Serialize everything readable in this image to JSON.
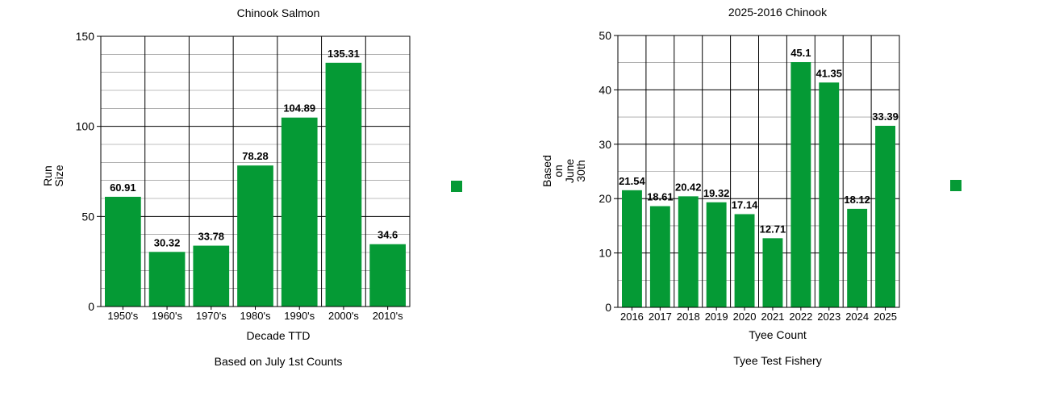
{
  "colors": {
    "bar": "#059a35",
    "left_value_label": "#8b0000",
    "right_value_label": "#000000",
    "major_grid": "#000000",
    "minor_grid": "#808080"
  },
  "chart_data": [
    {
      "type": "bar",
      "title": "Chinook Salmon",
      "subtitle": "Based on July 1st Counts",
      "xlabel": "Decade TTD",
      "ylabel": [
        "Run",
        "Size"
      ],
      "categories": [
        "1950's",
        "1960's",
        "1970's",
        "1980's",
        "1990's",
        "2000's",
        "2010's"
      ],
      "values": [
        60.91,
        30.32,
        33.78,
        78.28,
        104.89,
        135.31,
        34.6
      ],
      "value_labels": [
        "60.91",
        "30.32",
        "33.78",
        "78.28",
        "104.89",
        "135.31",
        "34.6"
      ],
      "ylim": [
        0,
        150
      ],
      "yticks": [
        0,
        50,
        100,
        150
      ],
      "minor_grid_step": 10,
      "legend": "right",
      "grid": true
    },
    {
      "type": "bar",
      "title": "2025-2016 Chinook",
      "subtitle": "Tyee Test Fishery",
      "xlabel": "Tyee Count",
      "ylabel": [
        "Based",
        "on",
        "June",
        "30th"
      ],
      "categories": [
        "2016",
        "2017",
        "2018",
        "2019",
        "2020",
        "2021",
        "2022",
        "2023",
        "2024",
        "2025"
      ],
      "values": [
        21.54,
        18.61,
        20.42,
        19.32,
        17.14,
        12.71,
        45.1,
        41.35,
        18.12,
        33.39
      ],
      "value_labels": [
        "21.54",
        "18.61",
        "20.42",
        "19.32",
        "17.14",
        "12.71",
        "45.1",
        "41.35",
        "18.12",
        "33.39"
      ],
      "ylim": [
        0,
        50
      ],
      "yticks": [
        0,
        10,
        20,
        30,
        40,
        50
      ],
      "minor_grid_step": 5,
      "legend": "right",
      "grid": true
    }
  ]
}
